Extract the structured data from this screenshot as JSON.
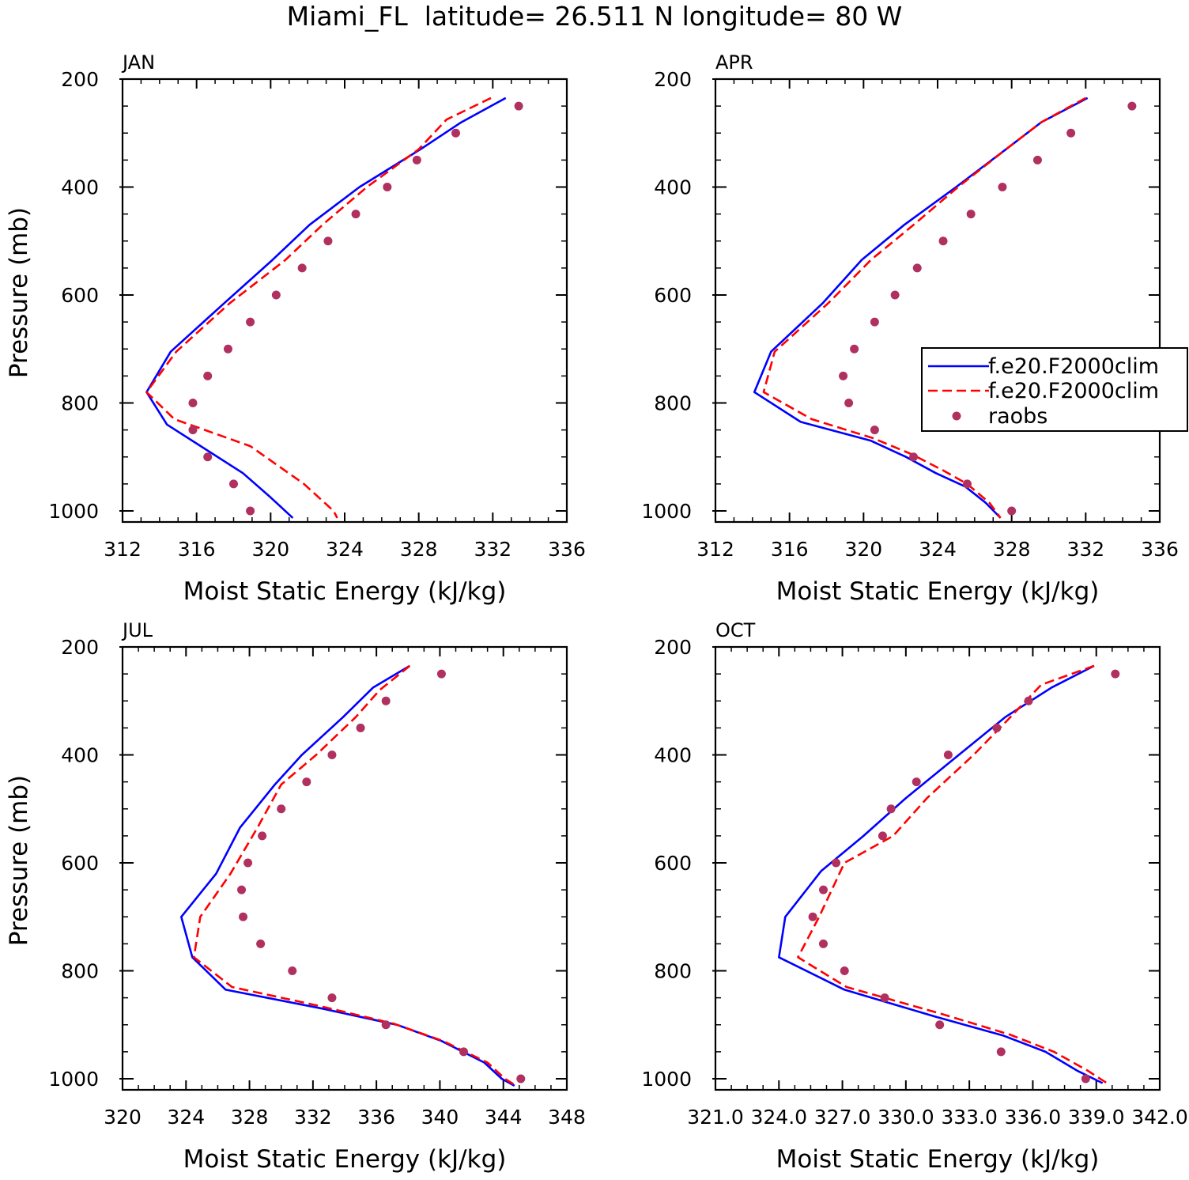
{
  "figure": {
    "title": "Miami_FL  latitude= 26.511 N longitude= 80 W"
  },
  "colors": {
    "model1": "#0000ff",
    "model2": "#ff0000",
    "raobs": "#b03060",
    "axis": "#000000"
  },
  "legend": {
    "entries": [
      "f.e20.F2000clim",
      "f.e20.F2000clim",
      "raobs"
    ],
    "placement": "right, middle of APR panel"
  },
  "chart_data": [
    {
      "type": "line",
      "panel": "JAN",
      "title": "JAN",
      "xlabel": "Moist Static Energy (kJ/kg)",
      "ylabel": "Pressure (mb)",
      "xlim": [
        312,
        336
      ],
      "ylim": [
        1000,
        200
      ],
      "y_inverted": true,
      "xticks": [
        "312",
        "316",
        "320",
        "324",
        "328",
        "332",
        "336"
      ],
      "yticks": [
        "200",
        "400",
        "600",
        "800",
        "1000"
      ],
      "series": [
        {
          "name": "f.e20.F2000clim",
          "style": "solid",
          "x": [
            332.7,
            330.3,
            328.1,
            324.8,
            322.1,
            320.1,
            317.5,
            314.6,
            313.3,
            314.4,
            318.5,
            320.0,
            321.2
          ],
          "y": [
            235,
            280,
            330,
            400,
            470,
            535,
            615,
            705,
            780,
            840,
            930,
            975,
            1013
          ]
        },
        {
          "name": "f.e20.F2000clim",
          "style": "dashed",
          "x": [
            331.9,
            329.5,
            328.0,
            325.2,
            322.8,
            320.8,
            317.8,
            314.9,
            313.3,
            314.8,
            318.9,
            321.8,
            323.4,
            323.6
          ],
          "y": [
            235,
            275,
            330,
            400,
            470,
            535,
            615,
            705,
            780,
            830,
            880,
            950,
            1000,
            1013
          ]
        },
        {
          "name": "raobs",
          "style": "markers",
          "x": [
            333.4,
            330.0,
            327.9,
            326.3,
            324.6,
            323.1,
            321.7,
            320.3,
            318.9,
            317.7,
            316.6,
            315.8,
            315.8,
            316.6,
            318.0,
            318.9
          ],
          "y": [
            250,
            300,
            350,
            400,
            450,
            500,
            550,
            600,
            650,
            700,
            750,
            800,
            850,
            900,
            950,
            1000
          ]
        }
      ]
    },
    {
      "type": "line",
      "panel": "APR",
      "title": "APR",
      "xlabel": "Moist Static Energy (kJ/kg)",
      "ylabel": "",
      "xlim": [
        312,
        336
      ],
      "ylim": [
        1000,
        200
      ],
      "y_inverted": true,
      "xticks": [
        "312",
        "316",
        "320",
        "324",
        "328",
        "332",
        "336"
      ],
      "yticks": [
        "200",
        "400",
        "600",
        "800",
        "1000"
      ],
      "series": [
        {
          "name": "f.e20.F2000clim",
          "style": "solid",
          "x": [
            332.1,
            329.6,
            327.7,
            325.0,
            322.2,
            319.9,
            317.8,
            315.0,
            314.1,
            316.6,
            320.4,
            322.3,
            323.9,
            325.5,
            326.6,
            327.4
          ],
          "y": [
            235,
            280,
            330,
            400,
            470,
            535,
            615,
            705,
            780,
            835,
            870,
            900,
            930,
            955,
            985,
            1013
          ]
        },
        {
          "name": "f.e20.F2000clim",
          "style": "dashed",
          "x": [
            332.0,
            329.6,
            327.7,
            325.1,
            322.7,
            320.4,
            318.1,
            315.2,
            314.6,
            317.2,
            320.5,
            322.6,
            324.3,
            325.6,
            326.8,
            327.4
          ],
          "y": [
            235,
            280,
            330,
            400,
            470,
            535,
            615,
            705,
            780,
            830,
            865,
            895,
            925,
            950,
            985,
            1013
          ]
        },
        {
          "name": "raobs",
          "style": "markers",
          "x": [
            334.5,
            331.2,
            329.4,
            327.5,
            325.8,
            324.3,
            322.9,
            321.7,
            320.6,
            319.5,
            318.9,
            319.2,
            320.6,
            322.7,
            325.6,
            328.0
          ],
          "y": [
            250,
            300,
            350,
            400,
            450,
            500,
            550,
            600,
            650,
            700,
            750,
            800,
            850,
            900,
            950,
            1000
          ]
        }
      ]
    },
    {
      "type": "line",
      "panel": "JUL",
      "title": "JUL",
      "xlabel": "Moist Static Energy (kJ/kg)",
      "ylabel": "Pressure (mb)",
      "xlim": [
        320,
        348
      ],
      "ylim": [
        1000,
        200
      ],
      "y_inverted": true,
      "xticks": [
        "320",
        "324",
        "328",
        "332",
        "336",
        "340",
        "344",
        "348"
      ],
      "yticks": [
        "200",
        "400",
        "600",
        "800",
        "1000"
      ],
      "series": [
        {
          "name": "f.e20.F2000clim",
          "style": "solid",
          "x": [
            338.1,
            335.8,
            333.9,
            331.3,
            329.6,
            327.4,
            325.9,
            323.7,
            324.4,
            326.5,
            332.6,
            337.3,
            340.1,
            342.8,
            343.9,
            344.7
          ],
          "y": [
            235,
            275,
            330,
            400,
            455,
            535,
            620,
            700,
            775,
            835,
            870,
            900,
            930,
            970,
            1000,
            1013
          ]
        },
        {
          "name": "f.e20.F2000clim",
          "style": "dashed",
          "x": [
            338.1,
            336.2,
            334.7,
            332.2,
            330.0,
            328.5,
            326.8,
            324.9,
            324.5,
            326.9,
            332.4,
            337.1,
            340.2,
            343.0,
            344.1,
            344.8
          ],
          "y": [
            235,
            280,
            330,
            400,
            455,
            535,
            620,
            700,
            775,
            830,
            865,
            898,
            930,
            970,
            1000,
            1013
          ]
        },
        {
          "name": "raobs",
          "style": "markers",
          "x": [
            340.1,
            336.6,
            335.0,
            333.2,
            331.6,
            330.0,
            328.8,
            327.9,
            327.5,
            327.6,
            328.7,
            330.7,
            333.2,
            336.6,
            341.5,
            345.1
          ],
          "y": [
            250,
            300,
            350,
            400,
            450,
            500,
            550,
            600,
            650,
            700,
            750,
            800,
            850,
            900,
            950,
            1000
          ]
        }
      ]
    },
    {
      "type": "line",
      "panel": "OCT",
      "title": "OCT",
      "xlabel": "Moist Static Energy (kJ/kg)",
      "ylabel": "",
      "xlim": [
        321.0,
        342.0
      ],
      "ylim": [
        1000,
        200
      ],
      "y_inverted": true,
      "xticks": [
        "321.0",
        "324.0",
        "327.0",
        "330.0",
        "333.0",
        "336.0",
        "339.0",
        "342.0"
      ],
      "yticks": [
        "200",
        "400",
        "600",
        "800",
        "1000"
      ],
      "series": [
        {
          "name": "f.e20.F2000clim",
          "style": "solid",
          "x": [
            338.9,
            336.9,
            334.7,
            332.5,
            330.0,
            328.0,
            326.0,
            324.3,
            324.0,
            327.1,
            331.4,
            334.6,
            336.6,
            338.1,
            339.3
          ],
          "y": [
            235,
            275,
            330,
            400,
            480,
            550,
            615,
            700,
            775,
            835,
            885,
            920,
            950,
            985,
            1008
          ]
        },
        {
          "name": "f.e20.F2000clim",
          "style": "dashed",
          "x": [
            338.9,
            336.4,
            334.7,
            333.2,
            331.0,
            329.4,
            327.1,
            325.9,
            324.9,
            327.2,
            331.7,
            334.9,
            337.0,
            338.6,
            339.5
          ],
          "y": [
            235,
            270,
            340,
            400,
            480,
            550,
            600,
            700,
            775,
            830,
            880,
            918,
            950,
            985,
            1008
          ]
        },
        {
          "name": "raobs",
          "style": "markers",
          "x": [
            339.9,
            335.8,
            334.3,
            332.0,
            330.5,
            329.3,
            328.9,
            326.7,
            326.1,
            325.6,
            326.1,
            327.1,
            329.0,
            331.6,
            334.5,
            338.5
          ],
          "y": [
            250,
            300,
            350,
            400,
            450,
            500,
            550,
            600,
            650,
            700,
            750,
            800,
            850,
            900,
            950,
            1000
          ]
        }
      ]
    }
  ]
}
